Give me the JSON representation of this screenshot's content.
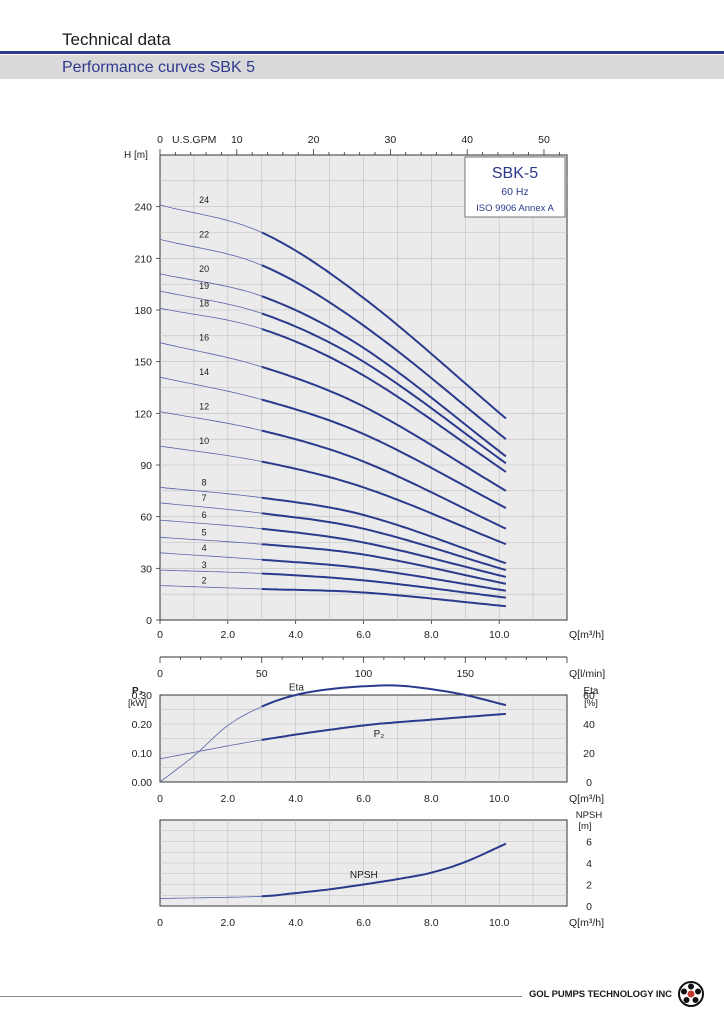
{
  "header": {
    "title": "Technical data",
    "subtitle": "Performance curves SBK 5"
  },
  "footer": {
    "brand": "GOL PUMPS TECHNOLOGY INC"
  },
  "colors": {
    "curve": "#2b3a8c",
    "thin_curve": "#5a64a8",
    "grid": "#bfbfbf",
    "plot_bg": "#ebebeb",
    "header_rule": "#2f3a8f",
    "header_band": "#d9d9d9"
  },
  "chart_data": [
    {
      "type": "line",
      "legend_box": {
        "title": "SBK-5",
        "line1": "60 Hz",
        "line2": "ISO 9906 Annex A",
        "placement": "top-right"
      },
      "ylabel": "H [m]",
      "xlabel": "Q",
      "xunit": "m³/h",
      "top_axis_label": "U.S.GPM",
      "top_axis_ticks": [
        "0",
        "10",
        "20",
        "30",
        "40",
        "50"
      ],
      "top_axis_range": [
        0,
        53
      ],
      "xlim": [
        0,
        12.0
      ],
      "ylim": [
        0,
        270
      ],
      "x_ticks": [
        "0",
        "2.0",
        "4.0",
        "6.0",
        "8.0",
        "10.0"
      ],
      "y_ticks": [
        "0",
        "30",
        "60",
        "90",
        "120",
        "150",
        "180",
        "210",
        "240"
      ],
      "operating_range_q": [
        3.0,
        10.2
      ],
      "grid": true,
      "series": [
        {
          "name": "24",
          "values": [
            [
              0,
              241
            ],
            [
              3,
              225
            ],
            [
              6,
              187
            ],
            [
              10.2,
              117
            ]
          ]
        },
        {
          "name": "22",
          "values": [
            [
              0,
              221
            ],
            [
              3,
              206
            ],
            [
              6,
              171
            ],
            [
              10.2,
              105
            ]
          ]
        },
        {
          "name": "20",
          "values": [
            [
              0,
              201
            ],
            [
              3,
              188
            ],
            [
              6,
              158
            ],
            [
              10.2,
              95
            ]
          ]
        },
        {
          "name": "19",
          "values": [
            [
              0,
              191
            ],
            [
              3,
              178
            ],
            [
              6,
              150
            ],
            [
              10.2,
              91
            ]
          ]
        },
        {
          "name": "18",
          "values": [
            [
              0,
              181
            ],
            [
              3,
              169
            ],
            [
              6,
              142
            ],
            [
              10.2,
              86
            ]
          ]
        },
        {
          "name": "16",
          "values": [
            [
              0,
              161
            ],
            [
              3,
              147
            ],
            [
              6,
              124
            ],
            [
              10.2,
              75
            ]
          ]
        },
        {
          "name": "14",
          "values": [
            [
              0,
              141
            ],
            [
              3,
              128
            ],
            [
              6,
              108
            ],
            [
              10.2,
              65
            ]
          ]
        },
        {
          "name": "12",
          "values": [
            [
              0,
              121
            ],
            [
              3,
              110
            ],
            [
              6,
              92
            ],
            [
              10.2,
              53
            ]
          ]
        },
        {
          "name": "10",
          "values": [
            [
              0,
              101
            ],
            [
              3,
              92
            ],
            [
              6,
              77
            ],
            [
              10.2,
              44
            ]
          ]
        },
        {
          "name": "8",
          "values": [
            [
              0,
              77
            ],
            [
              3,
              71
            ],
            [
              6,
              61
            ],
            [
              10.2,
              33
            ]
          ]
        },
        {
          "name": "7",
          "values": [
            [
              0,
              68
            ],
            [
              3,
              62
            ],
            [
              6,
              53
            ],
            [
              10.2,
              29
            ]
          ]
        },
        {
          "name": "6",
          "values": [
            [
              0,
              58
            ],
            [
              3,
              53
            ],
            [
              6,
              45
            ],
            [
              10.2,
              25
            ]
          ]
        },
        {
          "name": "5",
          "values": [
            [
              0,
              48
            ],
            [
              3,
              44
            ],
            [
              6,
              38
            ],
            [
              10.2,
              21
            ]
          ]
        },
        {
          "name": "4",
          "values": [
            [
              0,
              39
            ],
            [
              3,
              35
            ],
            [
              6,
              30
            ],
            [
              10.2,
              17
            ]
          ]
        },
        {
          "name": "3",
          "values": [
            [
              0,
              29
            ],
            [
              3,
              27
            ],
            [
              6,
              23
            ],
            [
              10.2,
              13
            ]
          ]
        },
        {
          "name": "2",
          "values": [
            [
              0,
              20
            ],
            [
              3,
              18
            ],
            [
              6,
              16
            ],
            [
              10.2,
              8
            ]
          ]
        }
      ]
    },
    {
      "type": "axis",
      "xlabel": "Q",
      "xunit": "[l/min]",
      "x_ticks": [
        "0",
        "50",
        "100",
        "150"
      ],
      "xlim": [
        0,
        200
      ]
    },
    {
      "type": "line",
      "ylabel_left": "P₂",
      "yunit_left": "[kW]",
      "ylabel_right": "Eta",
      "yunit_right": "[%]",
      "xlabel": "Q",
      "xunit": "m³/h",
      "xlim": [
        0,
        12.0
      ],
      "ylim_left": [
        0,
        0.3
      ],
      "ylim_right": [
        0,
        60
      ],
      "y_ticks_left": [
        "0.00",
        "0.10",
        "0.20",
        "0.30"
      ],
      "y_ticks_right": [
        "0",
        "20",
        "40",
        "60"
      ],
      "x_ticks": [
        "0",
        "2.0",
        "4.0",
        "6.0",
        "8.0",
        "10.0"
      ],
      "grid": true,
      "series": [
        {
          "name": "Eta",
          "axis": "right",
          "values": [
            [
              0,
              0
            ],
            [
              1,
              18
            ],
            [
              2,
              39
            ],
            [
              3,
              52
            ],
            [
              4,
              60
            ],
            [
              5,
              64
            ],
            [
              6,
              66
            ],
            [
              7,
              66.5
            ],
            [
              8,
              64
            ],
            [
              9,
              60
            ],
            [
              10.2,
              53
            ]
          ]
        },
        {
          "name": "P₂",
          "axis": "left",
          "values": [
            [
              0,
              0.08
            ],
            [
              3,
              0.145
            ],
            [
              6,
              0.195
            ],
            [
              8,
              0.215
            ],
            [
              10.2,
              0.235
            ]
          ]
        }
      ]
    },
    {
      "type": "line",
      "ylabel_right": "NPSH",
      "yunit_right": "[m]",
      "xlabel": "Q",
      "xunit": "m³/h",
      "xlim": [
        0,
        12.0
      ],
      "ylim": [
        0,
        8
      ],
      "y_ticks": [
        "0",
        "2",
        "4",
        "6"
      ],
      "x_ticks": [
        "0",
        "2.0",
        "4.0",
        "6.0",
        "8.0",
        "10.0"
      ],
      "grid": true,
      "series": [
        {
          "name": "NPSH",
          "values": [
            [
              0,
              0.7
            ],
            [
              3,
              0.9
            ],
            [
              4,
              1.2
            ],
            [
              5,
              1.55
            ],
            [
              6,
              2.0
            ],
            [
              7,
              2.5
            ],
            [
              8,
              3.1
            ],
            [
              9,
              4.1
            ],
            [
              10.2,
              5.8
            ]
          ]
        }
      ]
    }
  ]
}
